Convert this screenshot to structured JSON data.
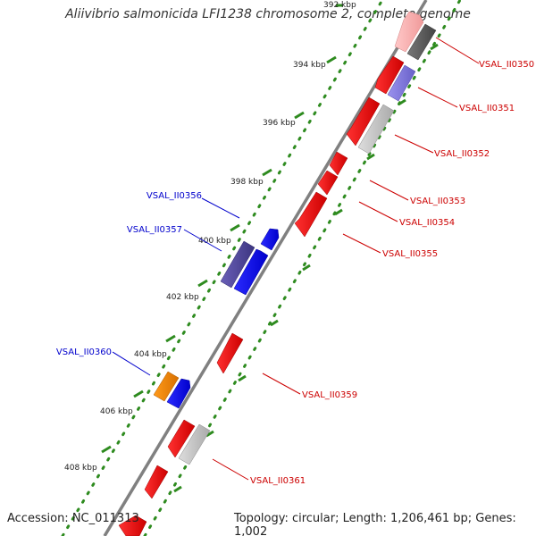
{
  "title": "Aliivibrio salmonicida LFI1238 chromosome 2, complete genome",
  "footer": {
    "accession": "Accession: NC_011313",
    "summary": "Topology: circular; Length: 1,206,461 bp; Genes: 1,002"
  },
  "ticks": [
    "392 kbp",
    "394 kbp",
    "396 kbp",
    "398 kbp",
    "400 kbp",
    "402 kbp",
    "404 kbp",
    "406 kbp",
    "408 kbp"
  ],
  "genes": {
    "forward": [
      "VSAL_II0356",
      "VSAL_II0357",
      "VSAL_II0360"
    ],
    "reverse": [
      "VSAL_II0350",
      "VSAL_II0351",
      "VSAL_II0352",
      "VSAL_II0353",
      "VSAL_II0354",
      "VSAL_II0355",
      "VSAL_II0359",
      "VSAL_II0361"
    ]
  },
  "colors": {
    "forward_label": "#0000cc",
    "reverse_label": "#cc0000",
    "backbone": "#808080",
    "tick": "#2e8b1f"
  }
}
